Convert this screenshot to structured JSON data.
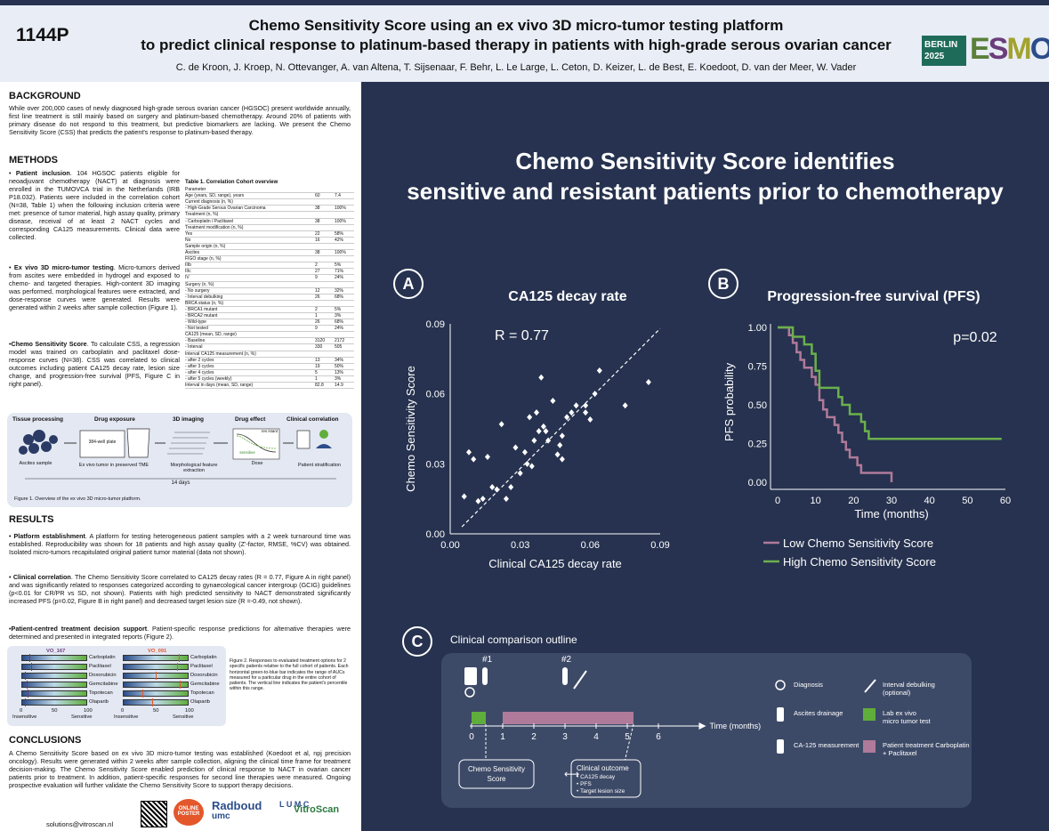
{
  "header": {
    "code": "1144P",
    "title_line1": "Chemo Sensitivity Score using an ex vivo 3D micro-tumor testing platform",
    "title_line2": "to predict clinical response to platinum-based therapy in patients with high-grade serous ovarian cancer",
    "authors": "C. de Kroon, J. Kroep, N. Ottevanger, A. van Altena, T. Sijsenaar, F. Behr, L. Le Large, L. Ceton, D. Keizer, L. de Best, E. Koedoot, D. van der Meer, W. Vader",
    "badge_line1": "BERLIN",
    "badge_line2": "2025",
    "logo": [
      "E",
      "S",
      "M",
      "O"
    ]
  },
  "background": {
    "heading": "BACKGROUND",
    "text": "While over 200,000 cases of newly diagnosed high-grade serous ovarian cancer (HGSOC) present worldwide annually, first line treatment is still mainly based on surgery and platinum-based chemotherapy. Around 20% of patients with primary disease do not respond to this treatment, but predictive biomarkers are lacking. We present the Chemo Sensitivity Score (CSS) that predicts the patient's response to platinum-based therapy."
  },
  "methods": {
    "heading": "METHODS",
    "b1_title": "Patient inclusion",
    "b1_text": ". 104 HGSOC patients eligible for neoadjuvant chemotherapy (NACT) at diagnosis were enrolled in the TUMOVCA trial in the Netherlands (IRB P18.032). Patients were included in the correlation cohort (N=38, Table 1) when the following inclusion criteria were met: presence of tumor material, high assay quality, primary disease, receival of at least 2 NACT cycles and corresponding CA125 measurements. Clinical data were collected.",
    "b2_title": "Ex vivo 3D micro-tumor testing",
    "b2_text": ". Micro-tumors derived from ascites were embedded in hydrogel and exposed to chemo- and targeted therapies. High-content 3D imaging was performed, morphological features were extracted, and dose-response curves were generated. Results were generated within 2 weeks after sample collection (Figure 1).",
    "b3_title": "Chemo Sensitivity Score",
    "b3_text": ". To calculate CSS, a regression model was trained on carboplatin and paclitaxel dose-response curves (N=38). CSS was correlated to clinical outcomes including patient CA125 decay rate, lesion size change, and progression-free survival (PFS, Figure C in right panel).",
    "table_title": "Table 1. Correlation Cohort overview",
    "table_rows": [
      [
        "Parameter",
        "",
        ""
      ],
      [
        "Age (years, SD, range), years",
        "60",
        "7.4"
      ],
      [
        "Current diagnosis (n, %)",
        "",
        ""
      ],
      [
        "- High-Grade Serous Ovarian Carcinoma",
        "38",
        "100%"
      ],
      [
        "Treatment (n, %)",
        "",
        ""
      ],
      [
        "- Carboplatin / Paclitaxel",
        "38",
        "100%"
      ],
      [
        "Treatment modification (n, %)",
        "",
        ""
      ],
      [
        "Yes",
        "22",
        "58%"
      ],
      [
        "No",
        "16",
        "42%"
      ],
      [
        "Sample origin (n, %)",
        "",
        ""
      ],
      [
        "Ascites",
        "38",
        "100%"
      ],
      [
        "FIGO stage (n, %)",
        "",
        ""
      ],
      [
        "IIIb",
        "2",
        "5%"
      ],
      [
        "IIIc",
        "27",
        "71%"
      ],
      [
        "IV",
        "9",
        "24%"
      ],
      [
        "Surgery (n, %)",
        "",
        ""
      ],
      [
        "- No surgery",
        "12",
        "32%"
      ],
      [
        "- Interval debulking",
        "26",
        "68%"
      ],
      [
        "BRCA status (n, %)",
        "",
        ""
      ],
      [
        "- BRCA1 mutant",
        "2",
        "5%"
      ],
      [
        "- BRCA2 mutant",
        "1",
        "3%"
      ],
      [
        "- Wild-type",
        "26",
        "68%"
      ],
      [
        "- Not tested",
        "9",
        "24%"
      ],
      [
        "CA125 (mean, SD, range)",
        "",
        ""
      ],
      [
        "- Baseline",
        "3120",
        "2172"
      ],
      [
        "- Interval",
        "330",
        "505"
      ],
      [
        "Interval CA125 measurement (n, %)",
        "",
        ""
      ],
      [
        "- after 2 cycles",
        "13",
        "34%"
      ],
      [
        "- after 3 cycles",
        "19",
        "50%"
      ],
      [
        "- after 4 cycles",
        "5",
        "13%"
      ],
      [
        "- after 5 cycles (weekly)",
        "1",
        "3%"
      ],
      [
        "Interval in days (mean, SD, range)",
        "82.8",
        "14.9"
      ]
    ]
  },
  "workflow": {
    "steps": [
      "Tissue processing",
      "Drug exposure",
      "3D imaging",
      "Drug effect",
      "Clinical correlation"
    ],
    "subs": [
      "Ascites sample",
      "Ex vivo tumor in preserved TME",
      "Morphological feature extraction",
      "Dose",
      "Patient stratification"
    ],
    "plate": "384-well plate",
    "res": "res istant",
    "sens": "sensitive",
    "duration": "14 days",
    "caption": "Figure 1. Overview of the ex vivo 3D micro-tumor platform."
  },
  "results": {
    "heading": "RESULTS",
    "b1_title": "Platform establishment",
    "b1_text": ". A platform for testing heterogeneous patient samples with a 2 week turnaround time was established. Reproducibility was shown for 18 patients and high assay quality (Z'-factor, RMSE, %CV) was obtained. Isolated micro-tumors recapitulated original patient tumor material (data not shown).",
    "b2_title": "Clinical correlation",
    "b2_text": ". The Chemo Sensitivity Score correlated to CA125 decay rates (R = 0.77, Figure A in right panel) and was significantly related to responses categorized according to gynaecological cancer intergroup (GCIG) guidelines (p<0.01 for CR/PR vs SD, not shown). Patients with high predicted sensitivity to NACT demonstrated significantly increased PFS (p=0.02, Figure B in right panel) and decreased target lesion size (R =-0.49, not shown).",
    "b3_title": "Patient-centred treatment decision support",
    "b3_text": ". Patient-specific response predictions for alternative therapies were determined and presented in integrated reports (Figure 2)."
  },
  "fig2": {
    "p1": "VO_167",
    "p2": "VO_091",
    "drugs": [
      "Carboplatin",
      "Paclitaxel",
      "Doxorubicin",
      "Gemcitabine",
      "Topotecan",
      "Olaparib"
    ],
    "ticks": [
      "0",
      "50",
      "100"
    ],
    "ends": [
      "Insensitive",
      "Sensitive"
    ],
    "p1_values": [
      0.12,
      0.15,
      0.05,
      0.08,
      0.1,
      0.06
    ],
    "p2_values": [
      0.85,
      0.82,
      0.5,
      0.86,
      0.3,
      0.45
    ],
    "caption": "Figure 2. Responses to evaluated treatment options for 2 specific patients relative to the full cohort of patients. Each horizontal green-to-blue bar indicates the range of AUCs measured for a particular drug in the entire cohort of patients. The vertical line indicates the patient's percentile within this range."
  },
  "conclusions": {
    "heading": "CONCLUSIONS",
    "text": "A Chemo Sensitivity Score based on ex vivo 3D micro-tumor testing was established (Koedoot et al, npj precision oncology). Results were generated within 2 weeks after sample collection, aligning the clinical time frame for treatment decision-making. The Chemo Sensitivity Score enabled prediction of clinical response to NACT in ovarian cancer patients prior to treatment. In addition, patient-specific responses for second line therapies were measured. Ongoing prospective evaluation will further validate the Chemo Sensitivity Score to support therapy decisions."
  },
  "footer": {
    "email": "solutions@vitroscan.nl",
    "online": "ONLINE POSTER",
    "radboud1": "Radboud",
    "radboud2": "umc",
    "lumc": "L U M C",
    "vitro": "VitroScan"
  },
  "right": {
    "headline1": "Chemo Sensitivity Score identifies",
    "headline2": "sensitive and resistant patients prior to chemotherapy",
    "a_label": "A",
    "b_label": "B",
    "c_label": "C",
    "c_title": "Clinical comparison outline"
  },
  "chart_data": [
    {
      "type": "scatter",
      "title": "CA125 decay rate",
      "xlabel": "Clinical CA125 decay rate",
      "ylabel": "Chemo Sensitivity Score",
      "annotation": "R = 0.77",
      "xlim": [
        0,
        0.09
      ],
      "ylim": [
        0,
        0.09
      ],
      "xticks": [
        "0.00",
        "0.03",
        "0.06",
        "0.09"
      ],
      "yticks": [
        "0.00",
        "0.03",
        "0.06",
        "0.09"
      ],
      "points": [
        [
          0.006,
          0.016
        ],
        [
          0.008,
          0.035
        ],
        [
          0.01,
          0.032
        ],
        [
          0.012,
          0.014
        ],
        [
          0.014,
          0.015
        ],
        [
          0.016,
          0.033
        ],
        [
          0.018,
          0.02
        ],
        [
          0.02,
          0.019
        ],
        [
          0.022,
          0.047
        ],
        [
          0.024,
          0.015
        ],
        [
          0.026,
          0.02
        ],
        [
          0.028,
          0.037
        ],
        [
          0.03,
          0.026
        ],
        [
          0.032,
          0.035
        ],
        [
          0.033,
          0.03
        ],
        [
          0.034,
          0.05
        ],
        [
          0.035,
          0.029
        ],
        [
          0.036,
          0.04
        ],
        [
          0.037,
          0.052
        ],
        [
          0.038,
          0.044
        ],
        [
          0.039,
          0.067
        ],
        [
          0.04,
          0.046
        ],
        [
          0.041,
          0.044
        ],
        [
          0.042,
          0.04
        ],
        [
          0.044,
          0.057
        ],
        [
          0.046,
          0.034
        ],
        [
          0.047,
          0.038
        ],
        [
          0.048,
          0.042
        ],
        [
          0.048,
          0.032
        ],
        [
          0.05,
          0.05
        ],
        [
          0.052,
          0.052
        ],
        [
          0.054,
          0.055
        ],
        [
          0.058,
          0.052
        ],
        [
          0.058,
          0.055
        ],
        [
          0.06,
          0.049
        ],
        [
          0.062,
          0.06
        ],
        [
          0.064,
          0.07
        ],
        [
          0.075,
          0.055
        ],
        [
          0.085,
          0.065
        ]
      ]
    },
    {
      "type": "line",
      "title": "Progression-free survival (PFS)",
      "xlabel": "Time (months)",
      "ylabel": "PFS probability",
      "annotation": "p=0.02",
      "xlim": [
        0,
        60
      ],
      "ylim": [
        0,
        1
      ],
      "xticks": [
        "0",
        "10",
        "20",
        "30",
        "40",
        "50",
        "60"
      ],
      "yticks": [
        "0.00",
        "0.25",
        "0.50",
        "0.75",
        "1.00"
      ],
      "series": [
        {
          "name": "Low Chemo Sensitivity Score",
          "color": "#b07a9a",
          "steps": [
            [
              0,
              1
            ],
            [
              2,
              1
            ],
            [
              3,
              0.95
            ],
            [
              4,
              0.9
            ],
            [
              5,
              0.84
            ],
            [
              6,
              0.79
            ],
            [
              7,
              0.74
            ],
            [
              8,
              0.74
            ],
            [
              9,
              0.68
            ],
            [
              10,
              0.63
            ],
            [
              11,
              0.53
            ],
            [
              12,
              0.47
            ],
            [
              13,
              0.42
            ],
            [
              15,
              0.37
            ],
            [
              16,
              0.32
            ],
            [
              17,
              0.26
            ],
            [
              18,
              0.21
            ],
            [
              19,
              0.16
            ],
            [
              21,
              0.11
            ],
            [
              22,
              0.06
            ],
            [
              30,
              0.06
            ],
            [
              30,
              0
            ]
          ]
        },
        {
          "name": "High Chemo Sensitivity Score",
          "color": "#6ab04c",
          "steps": [
            [
              0,
              1
            ],
            [
              3,
              1
            ],
            [
              4,
              0.94
            ],
            [
              6,
              0.94
            ],
            [
              7,
              0.89
            ],
            [
              9,
              0.83
            ],
            [
              10,
              0.72
            ],
            [
              11,
              0.61
            ],
            [
              12,
              0.61
            ],
            [
              16,
              0.55
            ],
            [
              17,
              0.5
            ],
            [
              19,
              0.44
            ],
            [
              22,
              0.39
            ],
            [
              23,
              0.33
            ],
            [
              24,
              0.28
            ],
            [
              59,
              0.28
            ]
          ]
        }
      ]
    }
  ],
  "timeline": {
    "ticks": [
      "0",
      "1",
      "2",
      "3",
      "4",
      "5",
      "6"
    ],
    "axis_label": "Time (months)",
    "m1": "#1",
    "m2": "#2",
    "css_box": "Chemo Sensitivity Score",
    "outcome_title": "Clinical outcome",
    "outcome_items": [
      "• CA125 decay",
      "• PFS",
      "• Target lesion size"
    ],
    "legend": [
      {
        "icon": "magnifier-icon",
        "label": "Diagnosis"
      },
      {
        "icon": "tube-icon",
        "label": "Ascites drainage"
      },
      {
        "icon": "thermometer-tube-icon",
        "label": "CA-125 measurement"
      },
      {
        "icon": "scalpel-icon",
        "label": "Interval debulking (optional)"
      },
      {
        "icon": "green-square",
        "label": "Lab ex vivo micro tumor test"
      },
      {
        "icon": "pink-square",
        "label": "Patient treatment Carboplatin + Paclitaxel"
      }
    ]
  }
}
